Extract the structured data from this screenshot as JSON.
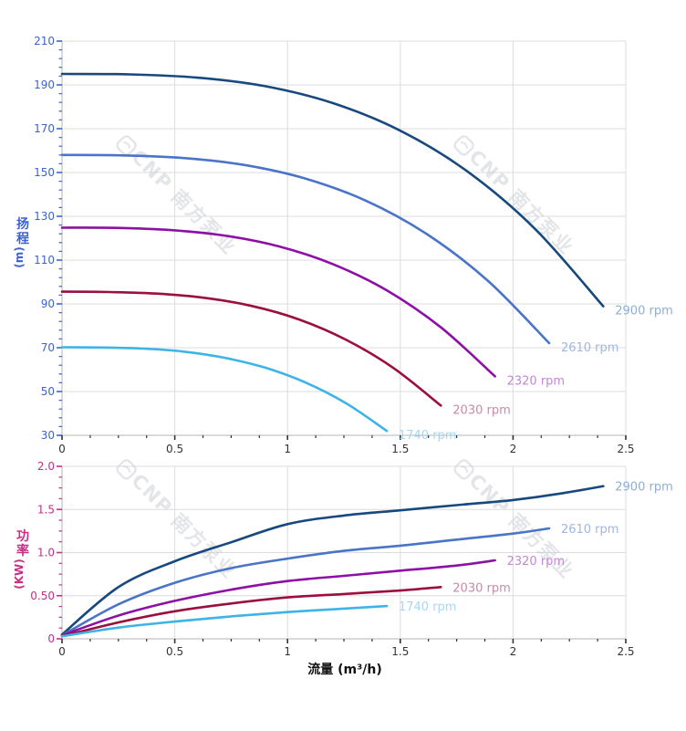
{
  "page": {
    "background": "#ffffff"
  },
  "watermark": {
    "text": "CNP 南方泵业",
    "color": "#cdd0d8"
  },
  "chart_data": [
    {
      "id": "head",
      "type": "line",
      "title": "",
      "ylabel": "扬程",
      "ylabel_unit": "(m)",
      "xlabel": "",
      "xlim": [
        0,
        2.5
      ],
      "ylim": [
        30,
        210
      ],
      "grid": true,
      "x_tick_values": [
        0,
        0.5,
        1,
        1.5,
        2,
        2.5
      ],
      "x_tick_labels": [
        "0",
        "0.5",
        "1",
        "1.5",
        "2",
        "2.5"
      ],
      "x_minor_step": 0.125,
      "y_tick_values": [
        30,
        50,
        70,
        90,
        110,
        130,
        150,
        170,
        190,
        210
      ],
      "y_tick_labels": [
        "30",
        "50",
        "70",
        "90",
        "110",
        "130",
        "150",
        "170",
        "190",
        "210"
      ],
      "y_minor_step": 4,
      "axis_color": "#b5b5b5",
      "grid_color": "#dcdcdc",
      "y_tick_color": "#3d63cf",
      "x_tick_color": "#333333",
      "y_label_color": "#3d63cf",
      "series": [
        {
          "name": "2900 rpm",
          "color": "#17497e",
          "label_color": "#8cafd6",
          "points": [
            [
              0,
              195
            ],
            [
              0.3,
              194.8
            ],
            [
              0.6,
              193.3
            ],
            [
              0.9,
              189.4
            ],
            [
              1.2,
              181.7
            ],
            [
              1.5,
              169.1
            ],
            [
              1.8,
              150.3
            ],
            [
              2.1,
              124.0
            ],
            [
              2.4,
              88.9
            ]
          ]
        },
        {
          "name": "2610 rpm",
          "color": "#4a74c8",
          "label_color": "#9fb6e4",
          "points": [
            [
              0,
              158
            ],
            [
              0.27,
              157.8
            ],
            [
              0.54,
              156.6
            ],
            [
              0.81,
              153.4
            ],
            [
              1.08,
              147.2
            ],
            [
              1.35,
              137.0
            ],
            [
              1.62,
              121.7
            ],
            [
              1.89,
              100.4
            ],
            [
              2.16,
              72.1
            ]
          ]
        },
        {
          "name": "2320 rpm",
          "color": "#8e0fa5",
          "label_color": "#c487d4",
          "points": [
            [
              0,
              124.8
            ],
            [
              0.24,
              124.7
            ],
            [
              0.48,
              123.7
            ],
            [
              0.72,
              121.2
            ],
            [
              0.96,
              116.3
            ],
            [
              1.2,
              108.2
            ],
            [
              1.44,
              96.2
            ],
            [
              1.68,
              79.3
            ],
            [
              1.92,
              56.9
            ]
          ]
        },
        {
          "name": "2030 rpm",
          "color": "#9b0f3d",
          "label_color": "#c78ba6",
          "points": [
            [
              0,
              95.6
            ],
            [
              0.21,
              95.4
            ],
            [
              0.42,
              94.7
            ],
            [
              0.63,
              92.8
            ],
            [
              0.84,
              89.1
            ],
            [
              1.05,
              82.9
            ],
            [
              1.26,
              73.6
            ],
            [
              1.47,
              60.7
            ],
            [
              1.68,
              43.6
            ]
          ]
        },
        {
          "name": "1740 rpm",
          "color": "#3eb3e6",
          "label_color": "#a3d9f5",
          "points": [
            [
              0,
              70.2
            ],
            [
              0.18,
              70.1
            ],
            [
              0.36,
              69.6
            ],
            [
              0.54,
              68.2
            ],
            [
              0.72,
              65.4
            ],
            [
              0.9,
              60.9
            ],
            [
              1.08,
              54.1
            ],
            [
              1.26,
              44.6
            ],
            [
              1.44,
              32.0
            ]
          ]
        }
      ]
    },
    {
      "id": "power",
      "type": "line",
      "title": "",
      "ylabel": "功率",
      "ylabel_unit": "(KW)",
      "xlabel": "流量 (m³/h)",
      "xlim": [
        0,
        2.5
      ],
      "ylim": [
        0,
        2.0
      ],
      "grid": true,
      "x_tick_values": [
        0,
        0.5,
        1,
        1.5,
        2,
        2.5
      ],
      "x_tick_labels": [
        "0",
        "0.5",
        "1",
        "1.5",
        "2",
        "2.5"
      ],
      "x_minor_step": 0.125,
      "y_tick_values": [
        0,
        0.5,
        1.0,
        1.5,
        2.0
      ],
      "y_tick_labels": [
        "0",
        "0.50",
        "1.0",
        "1.5",
        "2.0"
      ],
      "y_minor_step": 0.125,
      "axis_color": "#b5b5b5",
      "grid_color": "#dcdcdc",
      "y_tick_color": "#c72f85",
      "x_tick_color": "#333333",
      "y_label_color": "#c72f85",
      "x_label_color": "#111111",
      "series": [
        {
          "name": "2900 rpm",
          "color": "#17497e",
          "label_color": "#8cafd6",
          "points": [
            [
              0,
              0.05
            ],
            [
              0.25,
              0.6
            ],
            [
              0.5,
              0.9
            ],
            [
              0.75,
              1.12
            ],
            [
              1.0,
              1.33
            ],
            [
              1.25,
              1.43
            ],
            [
              1.5,
              1.49
            ],
            [
              1.75,
              1.55
            ],
            [
              2.0,
              1.61
            ],
            [
              2.2,
              1.68
            ],
            [
              2.4,
              1.77
            ]
          ]
        },
        {
          "name": "2610 rpm",
          "color": "#4a74c8",
          "label_color": "#9fb6e4",
          "points": [
            [
              0,
              0.04
            ],
            [
              0.25,
              0.4
            ],
            [
              0.5,
              0.65
            ],
            [
              0.75,
              0.82
            ],
            [
              1.0,
              0.93
            ],
            [
              1.25,
              1.02
            ],
            [
              1.5,
              1.08
            ],
            [
              1.75,
              1.15
            ],
            [
              2.0,
              1.22
            ],
            [
              2.16,
              1.28
            ]
          ]
        },
        {
          "name": "2320 rpm",
          "color": "#8e0fa5",
          "label_color": "#c487d4",
          "points": [
            [
              0,
              0.04
            ],
            [
              0.25,
              0.27
            ],
            [
              0.5,
              0.44
            ],
            [
              0.75,
              0.57
            ],
            [
              1.0,
              0.67
            ],
            [
              1.25,
              0.73
            ],
            [
              1.5,
              0.79
            ],
            [
              1.75,
              0.85
            ],
            [
              1.92,
              0.91
            ]
          ]
        },
        {
          "name": "2030 rpm",
          "color": "#9b0f3d",
          "label_color": "#c78ba6",
          "points": [
            [
              0,
              0.03
            ],
            [
              0.25,
              0.19
            ],
            [
              0.5,
              0.32
            ],
            [
              0.75,
              0.41
            ],
            [
              1.0,
              0.48
            ],
            [
              1.25,
              0.52
            ],
            [
              1.5,
              0.56
            ],
            [
              1.68,
              0.6
            ]
          ]
        },
        {
          "name": "1740 rpm",
          "color": "#3eb3e6",
          "label_color": "#a3d9f5",
          "points": [
            [
              0,
              0.03
            ],
            [
              0.25,
              0.13
            ],
            [
              0.5,
              0.2
            ],
            [
              0.75,
              0.26
            ],
            [
              1.0,
              0.31
            ],
            [
              1.25,
              0.35
            ],
            [
              1.44,
              0.38
            ]
          ]
        }
      ]
    }
  ]
}
